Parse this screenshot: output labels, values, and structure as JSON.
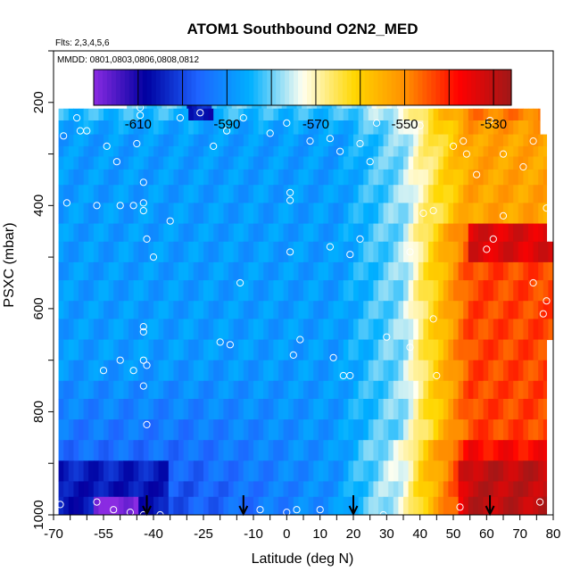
{
  "chart_data": {
    "type": "heatmap",
    "title": "ATOM1 Southbound O2N2_MED",
    "subtitle_flights": "Flts: 2,3,4,5,6",
    "subtitle_dates": "MMDD: 0801,0803,0806,0808,0812",
    "xlabel": "Latitude (deg N)",
    "ylabel": "PSXC (mbar)",
    "xlim": [
      -70,
      80
    ],
    "ylim": [
      1000,
      100
    ],
    "x_ticks": [
      -70,
      -55,
      -40,
      -25,
      -10,
      0,
      10,
      20,
      30,
      40,
      50,
      60,
      70,
      80
    ],
    "y_ticks": [
      200,
      400,
      600,
      800,
      1000
    ],
    "colorbar": {
      "range": [
        -620,
        -526
      ],
      "ticks": [
        -610,
        -590,
        -570,
        -550,
        -530
      ],
      "colors": [
        "#8a2be2",
        "#0000a0",
        "#1e64ff",
        "#00b0ff",
        "#fffff0",
        "#ffd700",
        "#ff8c00",
        "#ff0000",
        "#a01818"
      ]
    },
    "arrow_latitudes": [
      -42,
      -13,
      20,
      61
    ],
    "scatter_points": [
      {
        "lat": -68,
        "p": 980
      },
      {
        "lat": -57,
        "p": 975
      },
      {
        "lat": -52,
        "p": 990
      },
      {
        "lat": -47,
        "p": 995
      },
      {
        "lat": -43,
        "p": 1000
      },
      {
        "lat": -38,
        "p": 1000
      },
      {
        "lat": -8,
        "p": 990
      },
      {
        "lat": 0,
        "p": 995
      },
      {
        "lat": 3,
        "p": 990
      },
      {
        "lat": 10,
        "p": 990
      },
      {
        "lat": 29,
        "p": 1000
      },
      {
        "lat": 42,
        "p": 1010
      },
      {
        "lat": 52,
        "p": 985
      },
      {
        "lat": 76,
        "p": 975
      },
      {
        "lat": -42,
        "p": 825
      },
      {
        "lat": -55,
        "p": 720
      },
      {
        "lat": -50,
        "p": 700
      },
      {
        "lat": -46,
        "p": 720
      },
      {
        "lat": -43,
        "p": 700
      },
      {
        "lat": -43,
        "p": 750
      },
      {
        "lat": -42,
        "p": 710
      },
      {
        "lat": -20,
        "p": 665
      },
      {
        "lat": -17,
        "p": 670
      },
      {
        "lat": 2,
        "p": 690
      },
      {
        "lat": 4,
        "p": 660
      },
      {
        "lat": 14,
        "p": 695
      },
      {
        "lat": 17,
        "p": 730
      },
      {
        "lat": 19,
        "p": 730
      },
      {
        "lat": 30,
        "p": 655
      },
      {
        "lat": 37,
        "p": 675
      },
      {
        "lat": 45,
        "p": 730
      },
      {
        "lat": 44,
        "p": 620
      },
      {
        "lat": -43,
        "p": 635
      },
      {
        "lat": -43,
        "p": 645
      },
      {
        "lat": 77,
        "p": 610
      },
      {
        "lat": 78,
        "p": 585
      },
      {
        "lat": -14,
        "p": 550
      },
      {
        "lat": 74,
        "p": 550
      },
      {
        "lat": -40,
        "p": 500
      },
      {
        "lat": -42,
        "p": 465
      },
      {
        "lat": 1,
        "p": 490
      },
      {
        "lat": 13,
        "p": 480
      },
      {
        "lat": 19,
        "p": 495
      },
      {
        "lat": 22,
        "p": 465
      },
      {
        "lat": 37,
        "p": 490
      },
      {
        "lat": 60,
        "p": 485
      },
      {
        "lat": 62,
        "p": 465
      },
      {
        "lat": -66,
        "p": 395
      },
      {
        "lat": -57,
        "p": 400
      },
      {
        "lat": -50,
        "p": 400
      },
      {
        "lat": -46,
        "p": 400
      },
      {
        "lat": -43,
        "p": 395
      },
      {
        "lat": -43,
        "p": 410
      },
      {
        "lat": -35,
        "p": 430
      },
      {
        "lat": 1,
        "p": 375
      },
      {
        "lat": 1,
        "p": 390
      },
      {
        "lat": 41,
        "p": 415
      },
      {
        "lat": 44,
        "p": 410
      },
      {
        "lat": 65,
        "p": 420
      },
      {
        "lat": 78,
        "p": 405
      },
      {
        "lat": -43,
        "p": 355
      },
      {
        "lat": 57,
        "p": 340
      },
      {
        "lat": 71,
        "p": 325
      },
      {
        "lat": -51,
        "p": 315
      },
      {
        "lat": 25,
        "p": 315
      },
      {
        "lat": -54,
        "p": 285
      },
      {
        "lat": -45,
        "p": 280
      },
      {
        "lat": -22,
        "p": 285
      },
      {
        "lat": -5,
        "p": 260
      },
      {
        "lat": 7,
        "p": 275
      },
      {
        "lat": 13,
        "p": 270
      },
      {
        "lat": 16,
        "p": 295
      },
      {
        "lat": 22,
        "p": 280
      },
      {
        "lat": 50,
        "p": 285
      },
      {
        "lat": 53,
        "p": 275
      },
      {
        "lat": 54,
        "p": 300
      },
      {
        "lat": 65,
        "p": 300
      },
      {
        "lat": 74,
        "p": 275
      },
      {
        "lat": -67,
        "p": 265
      },
      {
        "lat": -62,
        "p": 255
      },
      {
        "lat": -60,
        "p": 255
      },
      {
        "lat": -63,
        "p": 230
      },
      {
        "lat": -44,
        "p": 210
      },
      {
        "lat": -44,
        "p": 225
      },
      {
        "lat": -32,
        "p": 230
      },
      {
        "lat": -18,
        "p": 255
      },
      {
        "lat": -13,
        "p": 230
      },
      {
        "lat": 0,
        "p": 240
      },
      {
        "lat": 27,
        "p": 240
      },
      {
        "lat": 34,
        "p": 245
      },
      {
        "lat": 40,
        "p": 245
      },
      {
        "lat": 61,
        "p": 235
      },
      {
        "lat": -26,
        "p": 220
      },
      {
        "lat": 30,
        "p": 170
      }
    ]
  }
}
